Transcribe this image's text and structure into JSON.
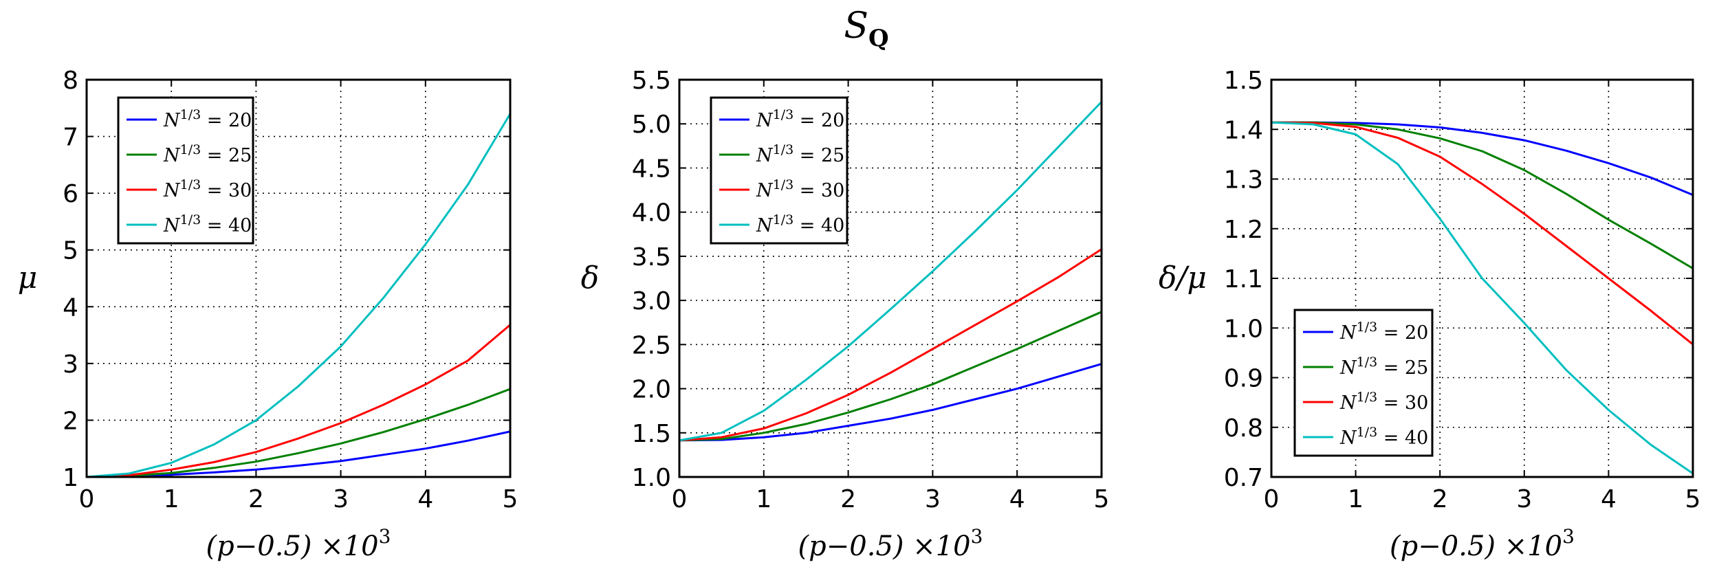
{
  "figure": {
    "title": {
      "main": "S",
      "sub": "Q"
    },
    "xlabel": {
      "text": "(p−0.5) ×10",
      "sup": "3"
    }
  },
  "chart_data": [
    {
      "type": "line",
      "ylabel": "μ",
      "xlim": [
        0,
        5
      ],
      "ylim": [
        1,
        8
      ],
      "xticks": [
        "0",
        "1",
        "2",
        "3",
        "4",
        "5"
      ],
      "yticks": [
        "1",
        "2",
        "3",
        "4",
        "5",
        "6",
        "7",
        "8"
      ],
      "grid": true,
      "legend": "top-left",
      "x": [
        0,
        0.5,
        1,
        1.5,
        2,
        2.5,
        3,
        3.5,
        4,
        4.5,
        5
      ],
      "series": [
        {
          "name": "N^{1/3} = 20",
          "color": "#0000ff",
          "values": [
            1.0,
            1.01,
            1.04,
            1.08,
            1.13,
            1.2,
            1.28,
            1.39,
            1.5,
            1.64,
            1.8
          ]
        },
        {
          "name": "N^{1/3} = 25",
          "color": "#008000",
          "values": [
            1.0,
            1.02,
            1.07,
            1.16,
            1.27,
            1.42,
            1.59,
            1.79,
            2.02,
            2.27,
            2.55
          ]
        },
        {
          "name": "N^{1/3} = 30",
          "color": "#ff0000",
          "values": [
            1.0,
            1.03,
            1.13,
            1.26,
            1.44,
            1.68,
            1.95,
            2.27,
            2.63,
            3.05,
            3.68
          ]
        },
        {
          "name": "N^{1/3} = 40",
          "color": "#00bfbf",
          "values": [
            1.0,
            1.06,
            1.25,
            1.57,
            2.0,
            2.6,
            3.3,
            4.15,
            5.1,
            6.15,
            7.4
          ]
        }
      ]
    },
    {
      "type": "line",
      "ylabel": "δ",
      "xlim": [
        0,
        5
      ],
      "ylim": [
        1.0,
        5.5
      ],
      "xticks": [
        "0",
        "1",
        "2",
        "3",
        "4",
        "5"
      ],
      "yticks": [
        "1.0",
        "1.5",
        "2.0",
        "2.5",
        "3.0",
        "3.5",
        "4.0",
        "4.5",
        "5.0",
        "5.5"
      ],
      "grid": true,
      "legend": "top-left",
      "x": [
        0,
        0.5,
        1,
        1.5,
        2,
        2.5,
        3,
        3.5,
        4,
        4.5,
        5
      ],
      "series": [
        {
          "name": "N^{1/3} = 20",
          "color": "#0000ff",
          "values": [
            1.414,
            1.42,
            1.45,
            1.5,
            1.58,
            1.66,
            1.76,
            1.88,
            2.0,
            2.14,
            2.28
          ]
        },
        {
          "name": "N^{1/3} = 25",
          "color": "#008000",
          "values": [
            1.414,
            1.43,
            1.5,
            1.6,
            1.73,
            1.88,
            2.05,
            2.25,
            2.45,
            2.66,
            2.87
          ]
        },
        {
          "name": "N^{1/3} = 30",
          "color": "#ff0000",
          "values": [
            1.414,
            1.45,
            1.55,
            1.72,
            1.93,
            2.18,
            2.45,
            2.72,
            2.99,
            3.27,
            3.58
          ]
        },
        {
          "name": "N^{1/3} = 40",
          "color": "#00bfbf",
          "values": [
            1.414,
            1.5,
            1.75,
            2.1,
            2.48,
            2.9,
            3.33,
            3.78,
            4.25,
            4.75,
            5.25
          ]
        }
      ]
    },
    {
      "type": "line",
      "ylabel": "δ/μ",
      "xlim": [
        0,
        5
      ],
      "ylim": [
        0.7,
        1.5
      ],
      "xticks": [
        "0",
        "1",
        "2",
        "3",
        "4",
        "5"
      ],
      "yticks": [
        "0.7",
        "0.8",
        "0.9",
        "1.0",
        "1.1",
        "1.2",
        "1.3",
        "1.4",
        "1.5"
      ],
      "grid": true,
      "legend": "bottom-left",
      "x": [
        0,
        0.5,
        1,
        1.5,
        2,
        2.5,
        3,
        3.5,
        4,
        4.5,
        5
      ],
      "series": [
        {
          "name": "N^{1/3} = 20",
          "color": "#0000ff",
          "values": [
            1.414,
            1.414,
            1.413,
            1.41,
            1.404,
            1.393,
            1.378,
            1.357,
            1.332,
            1.303,
            1.268
          ]
        },
        {
          "name": "N^{1/3} = 25",
          "color": "#008000",
          "values": [
            1.414,
            1.414,
            1.41,
            1.4,
            1.382,
            1.356,
            1.318,
            1.27,
            1.218,
            1.17,
            1.12
          ]
        },
        {
          "name": "N^{1/3} = 30",
          "color": "#ff0000",
          "values": [
            1.414,
            1.413,
            1.405,
            1.383,
            1.345,
            1.29,
            1.23,
            1.165,
            1.1,
            1.035,
            0.967
          ]
        },
        {
          "name": "N^{1/3} = 40",
          "color": "#00bfbf",
          "values": [
            1.414,
            1.41,
            1.39,
            1.33,
            1.22,
            1.1,
            1.01,
            0.915,
            0.835,
            0.765,
            0.707
          ]
        }
      ]
    }
  ]
}
